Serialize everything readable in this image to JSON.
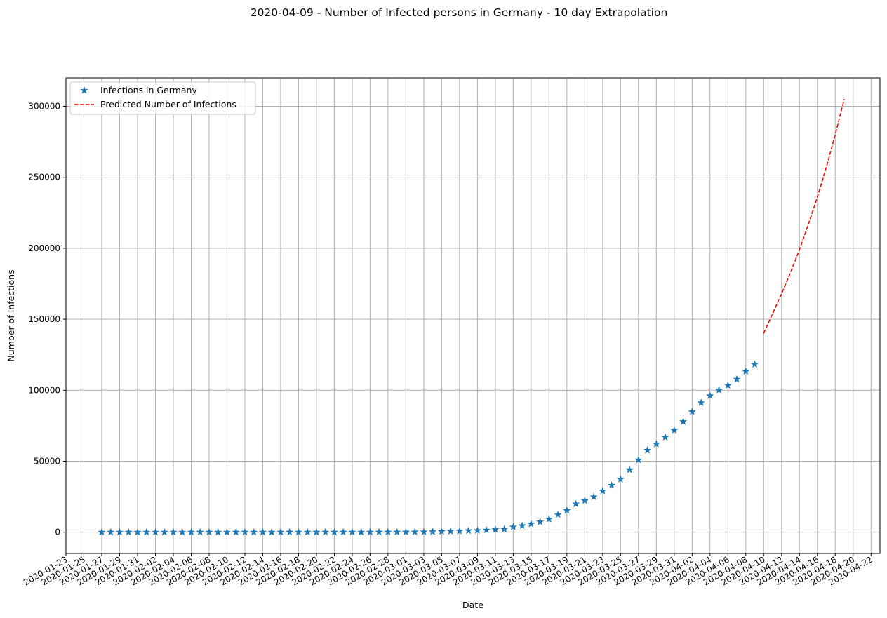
{
  "chart_data": {
    "type": "line",
    "title": "2020-04-09 - Number of Infected persons in Germany - 10 day Extrapolation",
    "xlabel": "Date",
    "ylabel": "Number of Infections",
    "xlim": [
      "2020-01-23",
      "2020-04-23"
    ],
    "ylim": [
      -15000,
      320000
    ],
    "grid": true,
    "legend_position": "upper-left",
    "x_ticks": [
      "2020-01-23",
      "2020-01-25",
      "2020-01-27",
      "2020-01-29",
      "2020-01-31",
      "2020-02-02",
      "2020-02-04",
      "2020-02-06",
      "2020-02-08",
      "2020-02-10",
      "2020-02-12",
      "2020-02-14",
      "2020-02-16",
      "2020-02-18",
      "2020-02-20",
      "2020-02-22",
      "2020-02-24",
      "2020-02-26",
      "2020-02-28",
      "2020-03-01",
      "2020-03-03",
      "2020-03-05",
      "2020-03-07",
      "2020-03-09",
      "2020-03-11",
      "2020-03-13",
      "2020-03-15",
      "2020-03-17",
      "2020-03-19",
      "2020-03-21",
      "2020-03-23",
      "2020-03-25",
      "2020-03-27",
      "2020-03-29",
      "2020-03-31",
      "2020-04-02",
      "2020-04-04",
      "2020-04-06",
      "2020-04-08",
      "2020-04-10",
      "2020-04-12",
      "2020-04-14",
      "2020-04-16",
      "2020-04-18",
      "2020-04-20",
      "2020-04-22"
    ],
    "y_ticks": [
      0,
      50000,
      100000,
      150000,
      200000,
      250000,
      300000
    ],
    "series": [
      {
        "name": "Infections in Germany",
        "style": "markers",
        "marker": "star",
        "color": "#1f77b4",
        "x": [
          "2020-01-27",
          "2020-01-28",
          "2020-01-29",
          "2020-01-30",
          "2020-01-31",
          "2020-02-01",
          "2020-02-02",
          "2020-02-03",
          "2020-02-04",
          "2020-02-05",
          "2020-02-06",
          "2020-02-07",
          "2020-02-08",
          "2020-02-09",
          "2020-02-10",
          "2020-02-11",
          "2020-02-12",
          "2020-02-13",
          "2020-02-14",
          "2020-02-15",
          "2020-02-16",
          "2020-02-17",
          "2020-02-18",
          "2020-02-19",
          "2020-02-20",
          "2020-02-21",
          "2020-02-22",
          "2020-02-23",
          "2020-02-24",
          "2020-02-25",
          "2020-02-26",
          "2020-02-27",
          "2020-02-28",
          "2020-02-29",
          "2020-03-01",
          "2020-03-02",
          "2020-03-03",
          "2020-03-04",
          "2020-03-05",
          "2020-03-06",
          "2020-03-07",
          "2020-03-08",
          "2020-03-09",
          "2020-03-10",
          "2020-03-11",
          "2020-03-12",
          "2020-03-13",
          "2020-03-14",
          "2020-03-15",
          "2020-03-16",
          "2020-03-17",
          "2020-03-18",
          "2020-03-19",
          "2020-03-20",
          "2020-03-21",
          "2020-03-22",
          "2020-03-23",
          "2020-03-24",
          "2020-03-25",
          "2020-03-26",
          "2020-03-27",
          "2020-03-28",
          "2020-03-29",
          "2020-03-30",
          "2020-03-31",
          "2020-04-01",
          "2020-04-02",
          "2020-04-03",
          "2020-04-04",
          "2020-04-05",
          "2020-04-06",
          "2020-04-07",
          "2020-04-08",
          "2020-04-09"
        ],
        "y": [
          1,
          4,
          4,
          4,
          5,
          8,
          10,
          12,
          12,
          12,
          12,
          13,
          14,
          14,
          14,
          16,
          16,
          16,
          16,
          16,
          16,
          16,
          16,
          16,
          16,
          16,
          16,
          16,
          16,
          17,
          27,
          46,
          48,
          79,
          130,
          159,
          196,
          262,
          482,
          670,
          799,
          1040,
          1176,
          1457,
          1908,
          2078,
          3675,
          4585,
          5795,
          7272,
          9257,
          12327,
          15320,
          19848,
          22213,
          24873,
          29056,
          32986,
          37323,
          43938,
          50871,
          57695,
          62095,
          66885,
          71808,
          77872,
          84794,
          91159,
          96092,
          100123,
          103374,
          107663,
          113296,
          118235
        ]
      },
      {
        "name": "Predicted Number of Infections",
        "style": "dashed",
        "color": "#ff0000",
        "x": [
          "2020-04-10",
          "2020-04-11",
          "2020-04-12",
          "2020-04-13",
          "2020-04-14",
          "2020-04-15",
          "2020-04-16",
          "2020-04-17",
          "2020-04-18",
          "2020-04-19"
        ],
        "y": [
          140000,
          154000,
          168000,
          183000,
          199000,
          217000,
          236000,
          257000,
          280000,
          305000
        ]
      }
    ]
  }
}
